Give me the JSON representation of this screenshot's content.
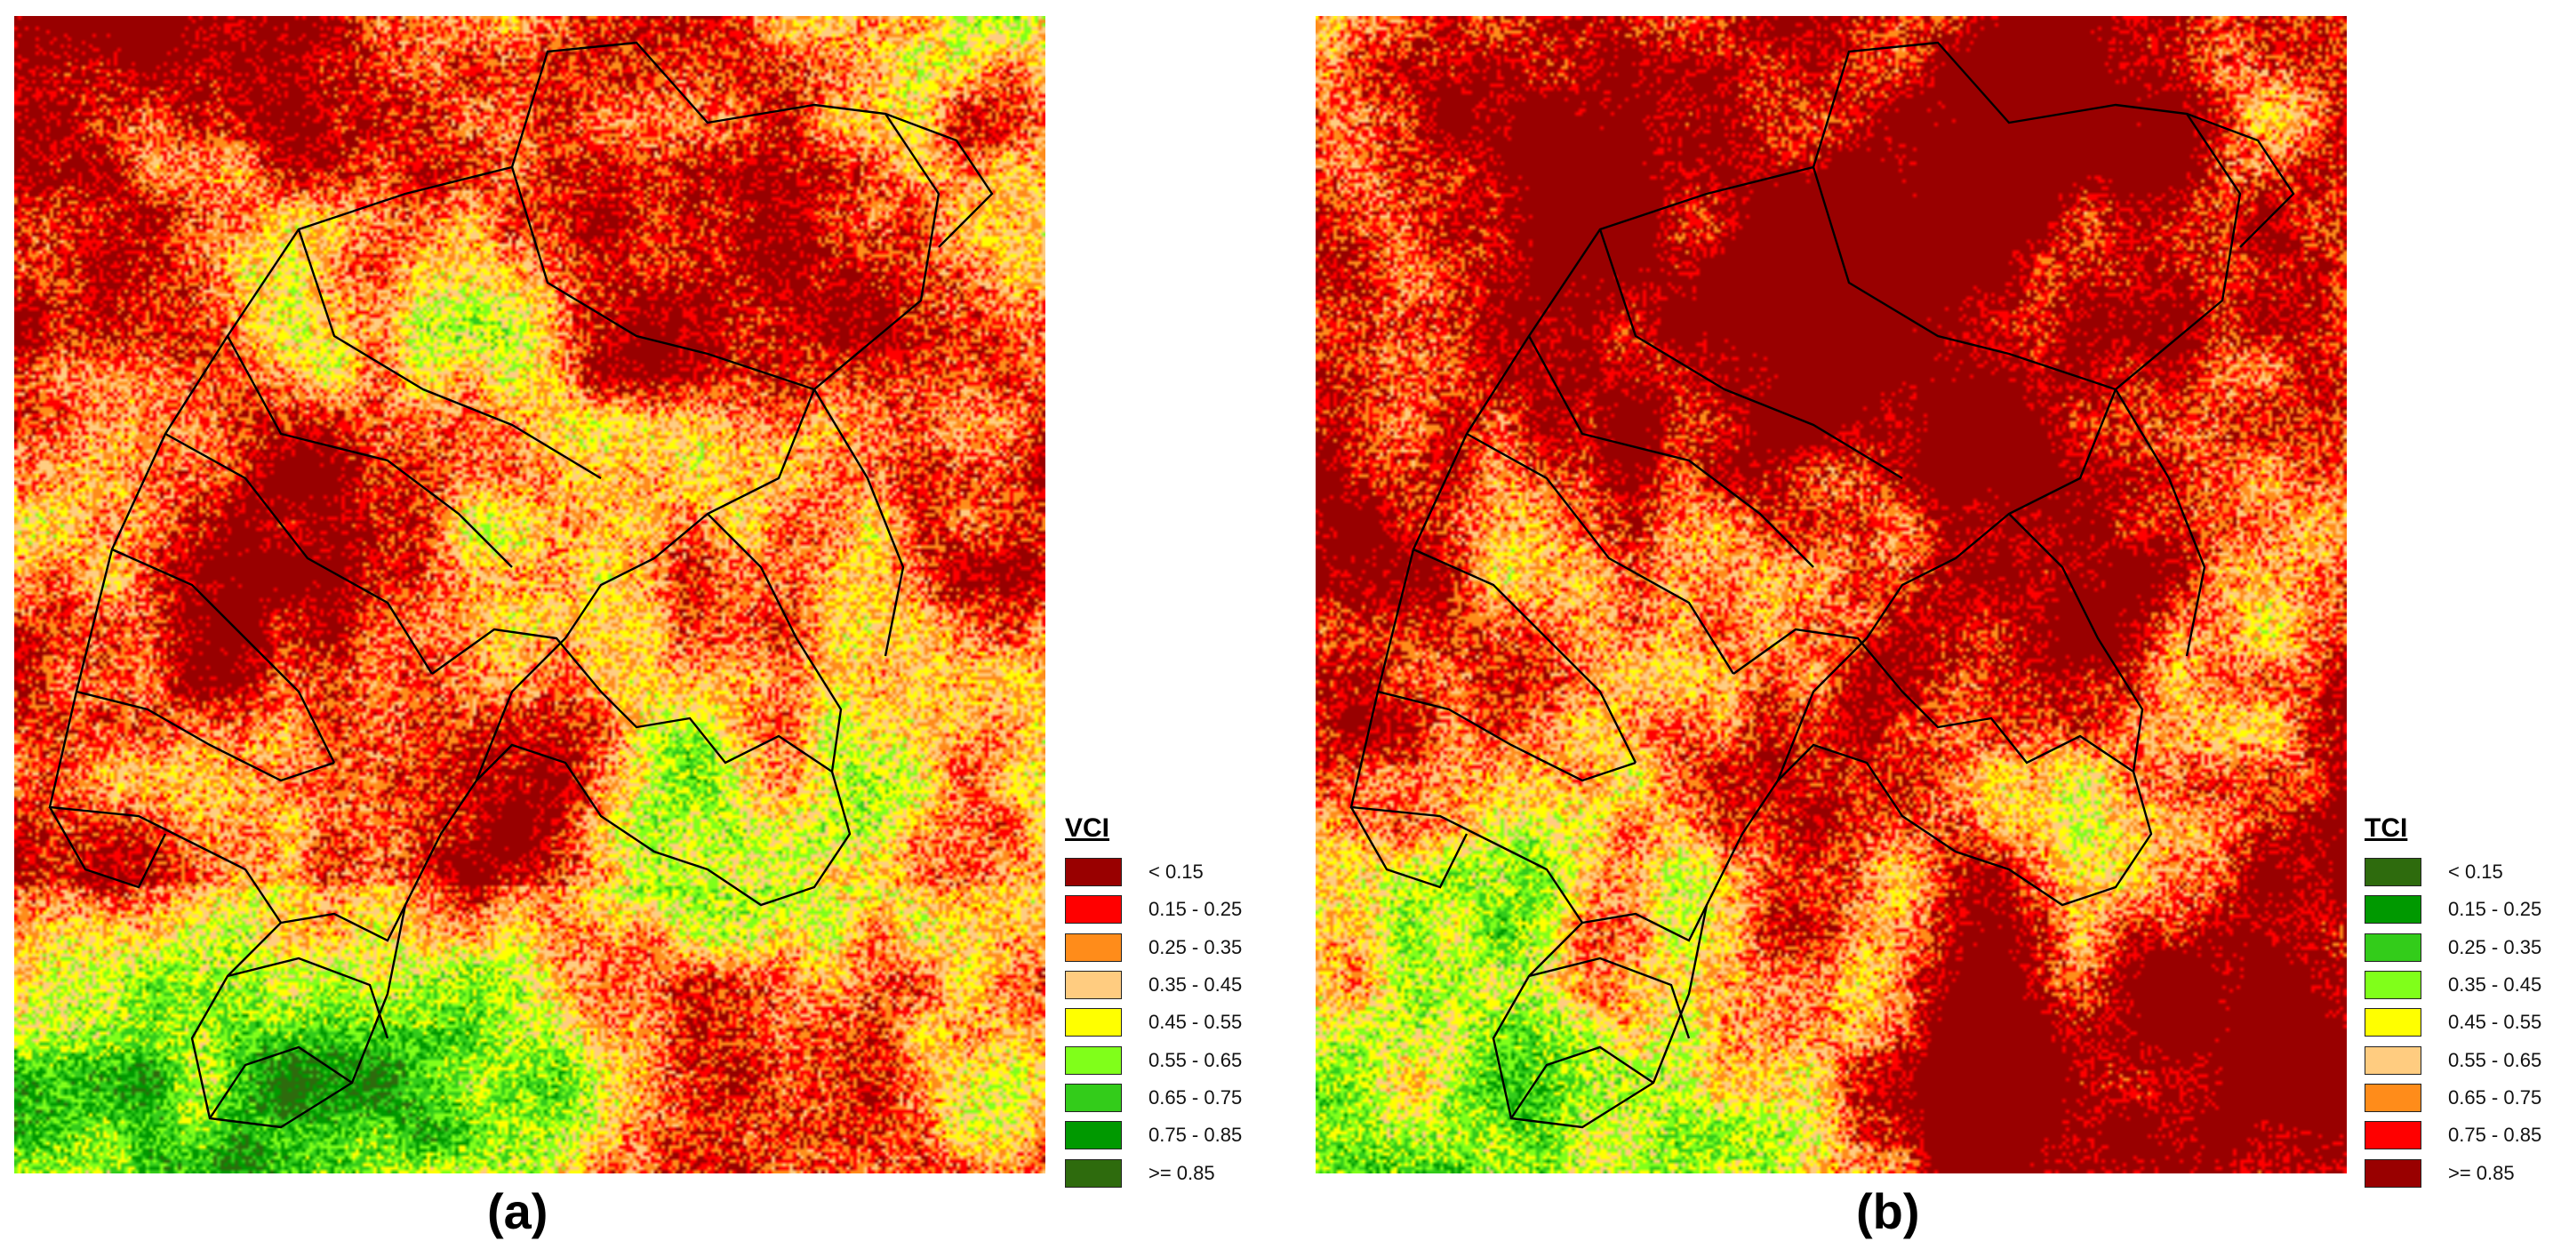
{
  "panels": [
    {
      "label": "(a)",
      "legend": {
        "title": "VCI",
        "classes": [
          {
            "label": "< 0.15",
            "color": "#990000"
          },
          {
            "label": "0.15 - 0.25",
            "color": "#ff0000"
          },
          {
            "label": "0.25 - 0.35",
            "color": "#ff8c1a"
          },
          {
            "label": "0.35 - 0.45",
            "color": "#ffcc80"
          },
          {
            "label": "0.45 - 0.55",
            "color": "#ffff00"
          },
          {
            "label": "0.55 - 0.65",
            "color": "#80ff1a"
          },
          {
            "label": "0.65 - 0.75",
            "color": "#33cc1a"
          },
          {
            "label": "0.75 - 0.85",
            "color": "#009900"
          },
          {
            "label": ">= 0.85",
            "color": "#2e6b0d"
          }
        ]
      }
    },
    {
      "label": "(b)",
      "legend": {
        "title": "TCI",
        "classes": [
          {
            "label": "< 0.15",
            "color": "#2e6b0d"
          },
          {
            "label": "0.15 - 0.25",
            "color": "#009900"
          },
          {
            "label": "0.25 - 0.35",
            "color": "#33cc1a"
          },
          {
            "label": "0.35 - 0.45",
            "color": "#80ff1a"
          },
          {
            "label": "0.45 - 0.55",
            "color": "#ffff00"
          },
          {
            "label": "0.55 - 0.65",
            "color": "#ffcc80"
          },
          {
            "label": "0.65 - 0.75",
            "color": "#ff8c1a"
          },
          {
            "label": "0.75 - 0.85",
            "color": "#ff0000"
          },
          {
            "label": ">= 0.85",
            "color": "#990000"
          }
        ]
      }
    }
  ]
}
